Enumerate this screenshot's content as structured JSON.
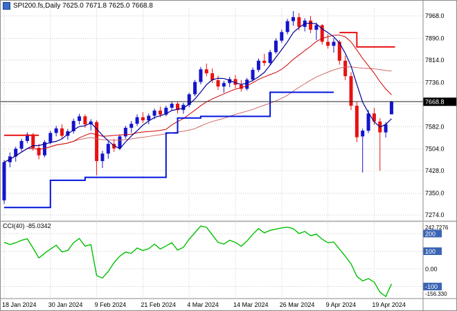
{
  "header": {
    "title_text": "SPI200.fs,Daily 7625.0 7671.8 7625.0 7668.8"
  },
  "indicator": {
    "label": "CCI(40) -85.0342"
  },
  "colors": {
    "background": "#ffffff",
    "grid": "#c9c9c9",
    "bull": "#1414cd",
    "bear": "#e81111",
    "ma_fast": "#000096",
    "ma_mid": "#d00000",
    "ma_slow": "#d06868",
    "cci": "#00c000",
    "level_box": "#3a64b4",
    "price_box": "#000000",
    "frame": "#8a8a8a"
  },
  "chart_data": {
    "type": "candlestick",
    "symbol": "SPI200.fs",
    "timeframe": "Daily",
    "ohlc_current": {
      "open": 7625.0,
      "high": 7671.8,
      "low": 7625.0,
      "close": 7668.8
    },
    "current_price": 7668.8,
    "x_labels": [
      "18 Jan 2024",
      "30 Jan 2024",
      "9 Feb 2024",
      "21 Feb 2024",
      "4 Mar 2024",
      "14 Mar 2024",
      "26 Mar 2024",
      "9 Apr 2024",
      "19 Apr 2024"
    ],
    "x_label_indices": [
      0,
      8,
      16,
      24,
      32,
      40,
      48,
      56,
      64
    ],
    "price_grid": [
      7968,
      7890,
      7814,
      7736,
      7660,
      7582,
      7504,
      7428,
      7350,
      7274
    ],
    "price_axis_labels": [
      "7968.0",
      "7890.0",
      "7814.0",
      "7736.0",
      "7582.0",
      "7504.0",
      "7428.0",
      "7350.0",
      "7274.0"
    ],
    "ylim": [
      7262,
      7990
    ],
    "grid_on": true,
    "candles": [
      [
        7325,
        7465,
        7312,
        7458
      ],
      [
        7458,
        7492,
        7440,
        7478
      ],
      [
        7478,
        7512,
        7460,
        7505
      ],
      [
        7505,
        7540,
        7496,
        7532
      ],
      [
        7532,
        7562,
        7524,
        7555
      ],
      [
        7555,
        7560,
        7498,
        7508
      ],
      [
        7508,
        7522,
        7468,
        7482
      ],
      [
        7482,
        7535,
        7475,
        7528
      ],
      [
        7528,
        7568,
        7520,
        7560
      ],
      [
        7560,
        7585,
        7548,
        7576
      ],
      [
        7576,
        7590,
        7540,
        7550
      ],
      [
        7550,
        7574,
        7536,
        7566
      ],
      [
        7566,
        7610,
        7558,
        7602
      ],
      [
        7602,
        7627,
        7590,
        7618
      ],
      [
        7618,
        7625,
        7578,
        7590
      ],
      [
        7590,
        7608,
        7568,
        7600
      ],
      [
        7598,
        7604,
        7412,
        7462
      ],
      [
        7462,
        7498,
        7438,
        7488
      ],
      [
        7488,
        7530,
        7470,
        7522
      ],
      [
        7522,
        7540,
        7494,
        7506
      ],
      [
        7506,
        7555,
        7500,
        7548
      ],
      [
        7548,
        7585,
        7540,
        7578
      ],
      [
        7578,
        7602,
        7560,
        7592
      ],
      [
        7592,
        7625,
        7584,
        7615
      ],
      [
        7615,
        7632,
        7594,
        7604
      ],
      [
        7604,
        7628,
        7590,
        7620
      ],
      [
        7620,
        7645,
        7608,
        7638
      ],
      [
        7638,
        7652,
        7614,
        7624
      ],
      [
        7624,
        7655,
        7618,
        7648
      ],
      [
        7648,
        7670,
        7640,
        7662
      ],
      [
        7662,
        7668,
        7628,
        7640
      ],
      [
        7640,
        7665,
        7627,
        7658
      ],
      [
        7658,
        7700,
        7650,
        7695
      ],
      [
        7695,
        7745,
        7688,
        7738
      ],
      [
        7738,
        7790,
        7730,
        7782
      ],
      [
        7782,
        7802,
        7758,
        7768
      ],
      [
        7768,
        7785,
        7734,
        7744
      ],
      [
        7744,
        7760,
        7710,
        7722
      ],
      [
        7722,
        7742,
        7700,
        7734
      ],
      [
        7734,
        7756,
        7720,
        7748
      ],
      [
        7748,
        7762,
        7716,
        7728
      ],
      [
        7728,
        7745,
        7704,
        7714
      ],
      [
        7714,
        7752,
        7708,
        7746
      ],
      [
        7746,
        7788,
        7740,
        7780
      ],
      [
        7780,
        7820,
        7772,
        7812
      ],
      [
        7812,
        7836,
        7794,
        7804
      ],
      [
        7804,
        7850,
        7798,
        7842
      ],
      [
        7842,
        7890,
        7836,
        7882
      ],
      [
        7882,
        7920,
        7874,
        7912
      ],
      [
        7912,
        7958,
        7904,
        7950
      ],
      [
        7950,
        7985,
        7934,
        7964
      ],
      [
        7964,
        7978,
        7918,
        7930
      ],
      [
        7930,
        7960,
        7914,
        7952
      ],
      [
        7952,
        7968,
        7908,
        7920
      ],
      [
        7920,
        7945,
        7884,
        7936
      ],
      [
        7936,
        7940,
        7868,
        7878
      ],
      [
        7878,
        7905,
        7854,
        7864
      ],
      [
        7864,
        7890,
        7840,
        7878
      ],
      [
        7878,
        7884,
        7798,
        7812
      ],
      [
        7812,
        7830,
        7744,
        7758
      ],
      [
        7758,
        7772,
        7640,
        7655
      ],
      [
        7655,
        7668,
        7528,
        7545
      ],
      [
        7548,
        7575,
        7422,
        7568
      ],
      [
        7568,
        7640,
        7560,
        7628
      ],
      [
        7628,
        7648,
        7588,
        7600
      ],
      [
        7600,
        7612,
        7428,
        7562
      ],
      [
        7562,
        7598,
        7544,
        7590
      ],
      [
        7625,
        7671.8,
        7625,
        7668.8
      ]
    ],
    "overlays": {
      "ma_fast_period": 5,
      "ma_mid_period": 13,
      "ma_slow_period": 34
    },
    "step_lines": [
      {
        "name": "support-trail-blue",
        "color": "#0014dd",
        "width": 2,
        "points": [
          [
            0,
            7300
          ],
          [
            8,
            7300
          ],
          [
            8,
            7395
          ],
          [
            14,
            7395
          ],
          [
            14,
            7405
          ],
          [
            28,
            7405
          ],
          [
            28,
            7560
          ],
          [
            30,
            7560
          ],
          [
            30,
            7612
          ],
          [
            34,
            7612
          ],
          [
            34,
            7618
          ],
          [
            46,
            7618
          ],
          [
            46,
            7702
          ],
          [
            57,
            7702
          ]
        ]
      },
      {
        "name": "resistance-left-red",
        "color": "#e81111",
        "width": 2,
        "points": [
          [
            0,
            7552
          ],
          [
            6,
            7552
          ]
        ]
      },
      {
        "name": "resistance-right-red",
        "color": "#e81111",
        "width": 2,
        "points": [
          [
            58,
            7910
          ],
          [
            61,
            7910
          ],
          [
            61,
            7860
          ],
          [
            67.6,
            7860
          ]
        ]
      }
    ],
    "cci": {
      "name": "CCI",
      "period": 40,
      "current": -85.0342,
      "scale_max": 242.7276,
      "scale_min": -156.33,
      "scale_max_label": "242.7276",
      "scale_min_label": "-156.330",
      "levels": [
        {
          "value": 200,
          "label": "200",
          "boxed": true
        },
        {
          "value": 100,
          "label": "100",
          "boxed": true
        },
        {
          "value": 0,
          "label": "0.00",
          "boxed": false
        },
        {
          "value": -100,
          "label": "-100",
          "boxed": true
        }
      ],
      "values": [
        150,
        138,
        148,
        162,
        170,
        118,
        62,
        88,
        112,
        134,
        96,
        104,
        148,
        172,
        128,
        138,
        -38,
        -52,
        -15,
        35,
        72,
        95,
        88,
        118,
        104,
        114,
        140,
        112,
        130,
        148,
        106,
        122,
        168,
        205,
        242.7276,
        235,
        192,
        150,
        140,
        162,
        150,
        128,
        158,
        196,
        228,
        204,
        218,
        225,
        232,
        236,
        228,
        200,
        212,
        188,
        196,
        168,
        148,
        152,
        112,
        72,
        28,
        -42,
        -68,
        -55,
        -75,
        -132,
        -156.33,
        -85.03
      ]
    }
  }
}
